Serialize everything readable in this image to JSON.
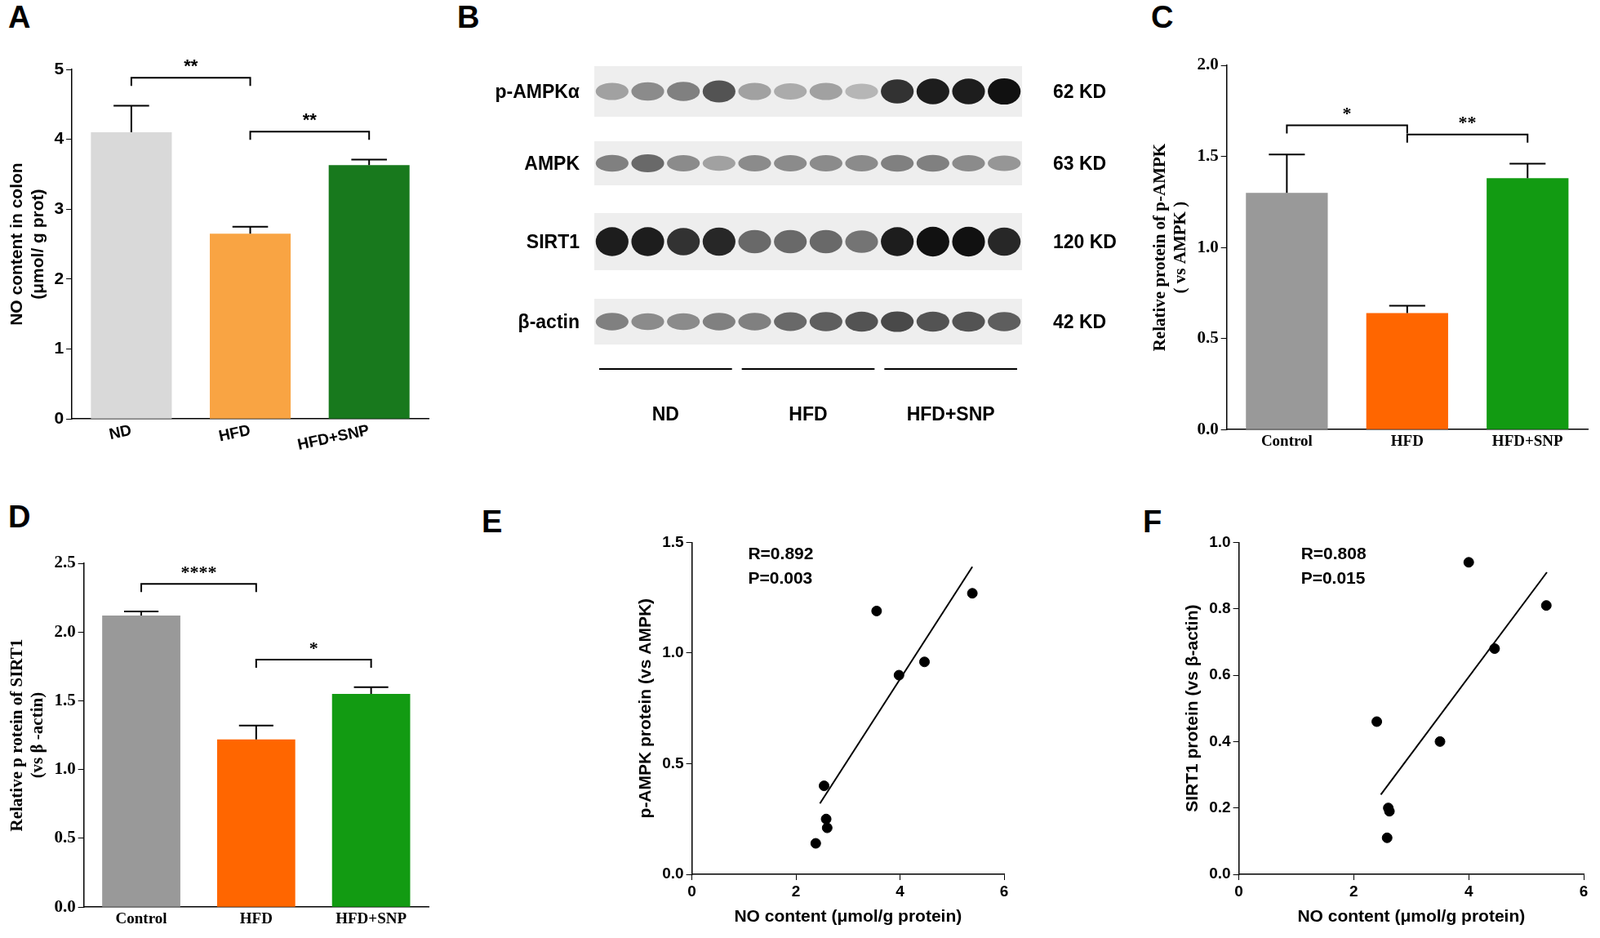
{
  "chart_data": [
    {
      "panel": "A",
      "type": "bar",
      "categories": [
        "ND",
        "HFD",
        "HFD+SNP"
      ],
      "values": [
        4.1,
        2.65,
        3.63
      ],
      "errors": [
        0.38,
        0.1,
        0.08
      ],
      "colors": [
        "#d9d9d9",
        "#f9a443",
        "#18791d"
      ],
      "y_label": [
        "NO content in colon",
        "(μmol/ g prot)"
      ],
      "ylim": [
        0,
        5
      ],
      "yticks": [
        0,
        1,
        2,
        3,
        4,
        5
      ],
      "grid": false,
      "significance": [
        {
          "from": 0,
          "to": 1,
          "label": "**"
        },
        {
          "from": 1,
          "to": 2,
          "label": "**"
        }
      ]
    },
    {
      "panel": "C",
      "type": "bar",
      "categories": [
        "Control",
        "HFD",
        "HFD+SNP"
      ],
      "values": [
        1.3,
        0.64,
        1.38
      ],
      "errors": [
        0.21,
        0.04,
        0.08
      ],
      "colors": [
        "#999999",
        "#ff6600",
        "#129b12"
      ],
      "y_label": [
        "Relative protein of p-AMPK",
        "( vs AMPK )"
      ],
      "ylim": [
        0,
        2
      ],
      "yticks": [
        {
          "value": 0,
          "label": "0.0"
        },
        {
          "value": 0.5,
          "label": "0.5"
        },
        {
          "value": 1,
          "label": "1.0"
        },
        {
          "value": 1.5,
          "label": "1.5"
        },
        {
          "value": 2,
          "label": "2.0"
        }
      ],
      "grid": false,
      "significance": [
        {
          "from": 0,
          "to": 1,
          "label": "*"
        },
        {
          "from": 1,
          "to": 2,
          "label": "**"
        }
      ]
    },
    {
      "panel": "D",
      "type": "bar",
      "categories": [
        "Control",
        "HFD",
        "HFD+SNP"
      ],
      "values": [
        2.12,
        1.22,
        1.55
      ],
      "errors": [
        0.03,
        0.1,
        0.05
      ],
      "colors": [
        "#999999",
        "#ff6600",
        "#129b12"
      ],
      "y_label": [
        "Relative p rotein of SIRT1",
        "(vs β -actin)"
      ],
      "ylim": [
        0,
        2.5
      ],
      "yticks": [
        {
          "value": 0,
          "label": "0.0"
        },
        {
          "value": 0.5,
          "label": "0.5"
        },
        {
          "value": 1,
          "label": "1.0"
        },
        {
          "value": 1.5,
          "label": "1.5"
        },
        {
          "value": 2,
          "label": "2.0"
        },
        {
          "value": 2.5,
          "label": "2.5"
        }
      ],
      "grid": false,
      "significance": [
        {
          "from": 0,
          "to": 1,
          "label": "****"
        },
        {
          "from": 1,
          "to": 2,
          "label": "*"
        }
      ]
    },
    {
      "panel": "E",
      "type": "scatter",
      "x": [
        2.38,
        2.54,
        2.58,
        2.6,
        3.55,
        3.98,
        4.47,
        5.39
      ],
      "values": [
        0.14,
        0.4,
        0.25,
        0.21,
        1.19,
        0.9,
        0.96,
        1.27
      ],
      "fit": {
        "x": [
          2.46,
          5.39
        ],
        "values": [
          0.32,
          1.39
        ]
      },
      "color": "#000000",
      "annotations": [
        "R=0.892",
        "P=0.003"
      ],
      "x_label": "NO content (μmol/g protein)",
      "y_label": "p-AMPK protein (vs AMPK)",
      "xlim": [
        0,
        6
      ],
      "xticks": [
        0,
        2,
        4,
        6
      ],
      "ylim": [
        0,
        1.5
      ],
      "yticks": [
        {
          "value": 0,
          "label": "0.0"
        },
        {
          "value": 0.5,
          "label": "0.5"
        },
        {
          "value": 1,
          "label": "1.0"
        },
        {
          "value": 1.5,
          "label": "1.5"
        }
      ],
      "grid": false
    },
    {
      "panel": "F",
      "type": "scatter",
      "x": [
        2.4,
        2.6,
        2.62,
        2.58,
        3.5,
        4.0,
        4.45,
        5.35
      ],
      "values": [
        0.46,
        0.2,
        0.19,
        0.11,
        0.4,
        0.94,
        0.68,
        0.81
      ],
      "fit": {
        "x": [
          2.47,
          5.36
        ],
        "values": [
          0.24,
          0.91
        ]
      },
      "color": "#000000",
      "annotations": [
        "R=0.808",
        "P=0.015"
      ],
      "x_label": "NO content (μmol/g protein)",
      "y_label": "SIRT1 protein (vs β-actin)",
      "xlim": [
        0,
        6
      ],
      "xticks": [
        0,
        2,
        4,
        6
      ],
      "ylim": [
        0,
        1
      ],
      "yticks": [
        {
          "value": 0,
          "label": "0.0"
        },
        {
          "value": 0.2,
          "label": "0.2"
        },
        {
          "value": 0.4,
          "label": "0.4"
        },
        {
          "value": 0.6,
          "label": "0.6"
        },
        {
          "value": 0.8,
          "label": "0.8"
        },
        {
          "value": 1,
          "label": "1.0"
        }
      ],
      "grid": false
    }
  ],
  "blot": {
    "panel": "B",
    "groups": [
      "ND",
      "HFD",
      "HFD+SNP"
    ],
    "rows": [
      {
        "label": "p-AMPKα",
        "size": "62 KD",
        "intensity": [
          0.35,
          0.45,
          0.5,
          0.7,
          0.35,
          0.3,
          0.35,
          0.25,
          0.85,
          0.95,
          0.95,
          1.0
        ]
      },
      {
        "label": "AMPK",
        "size": "63 KD",
        "intensity": [
          0.5,
          0.6,
          0.45,
          0.35,
          0.45,
          0.45,
          0.45,
          0.45,
          0.5,
          0.5,
          0.45,
          0.4
        ]
      },
      {
        "label": "SIRT1",
        "size": "120 KD",
        "intensity": [
          0.95,
          0.95,
          0.85,
          0.9,
          0.6,
          0.6,
          0.6,
          0.55,
          0.95,
          1.0,
          1.0,
          0.9
        ]
      },
      {
        "label": "β-actin",
        "size": "42 KD",
        "intensity": [
          0.5,
          0.45,
          0.45,
          0.5,
          0.5,
          0.6,
          0.65,
          0.7,
          0.75,
          0.7,
          0.7,
          0.65
        ]
      }
    ]
  }
}
